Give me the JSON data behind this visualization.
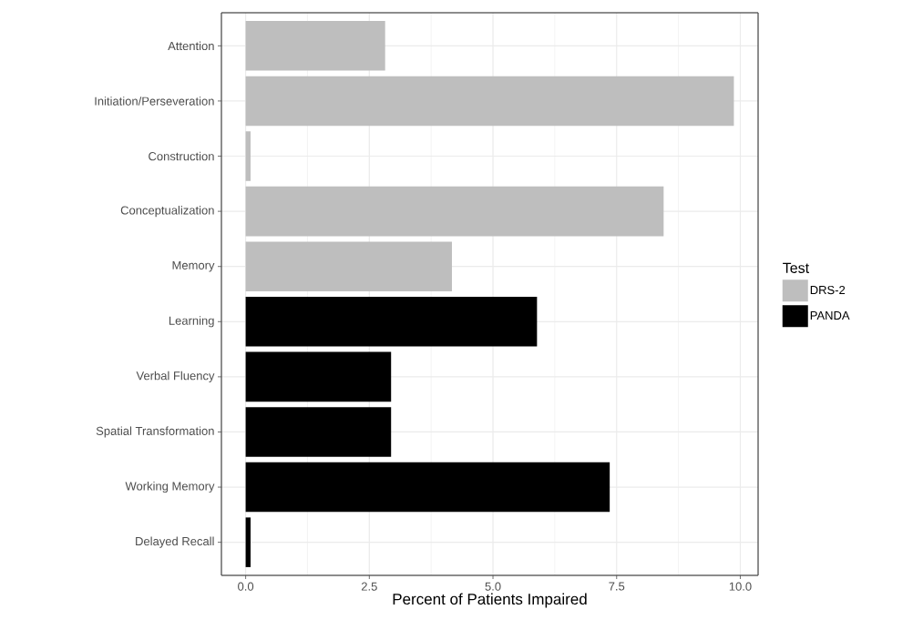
{
  "chart_data": {
    "type": "bar",
    "orientation": "horizontal",
    "xlabel": "Percent of Patients Impaired",
    "legend_title": "Test",
    "categories": [
      "Attention",
      "Initiation/Perseveration",
      "Construction",
      "Conceptualization",
      "Memory",
      "Learning",
      "Verbal Fluency",
      "Spatial Transformation",
      "Working Memory",
      "Delayed Recall"
    ],
    "series": [
      {
        "name": "DRS-2",
        "color": "#bebebe",
        "values": [
          2.82,
          9.87,
          0.1,
          8.45,
          4.17,
          null,
          null,
          null,
          null,
          null
        ]
      },
      {
        "name": "PANDA",
        "color": "#000000",
        "values": [
          null,
          null,
          null,
          null,
          null,
          5.89,
          2.94,
          2.94,
          7.36,
          0.1
        ]
      }
    ],
    "xlim": [
      -0.49,
      10.36
    ],
    "xticks": [
      {
        "value": 0,
        "label": "0.0"
      },
      {
        "value": 2.5,
        "label": "2.5"
      },
      {
        "value": 5,
        "label": "5.0"
      },
      {
        "value": 7.5,
        "label": "7.5"
      },
      {
        "value": 10,
        "label": "10.0"
      }
    ],
    "grid": true,
    "legend": "right"
  }
}
